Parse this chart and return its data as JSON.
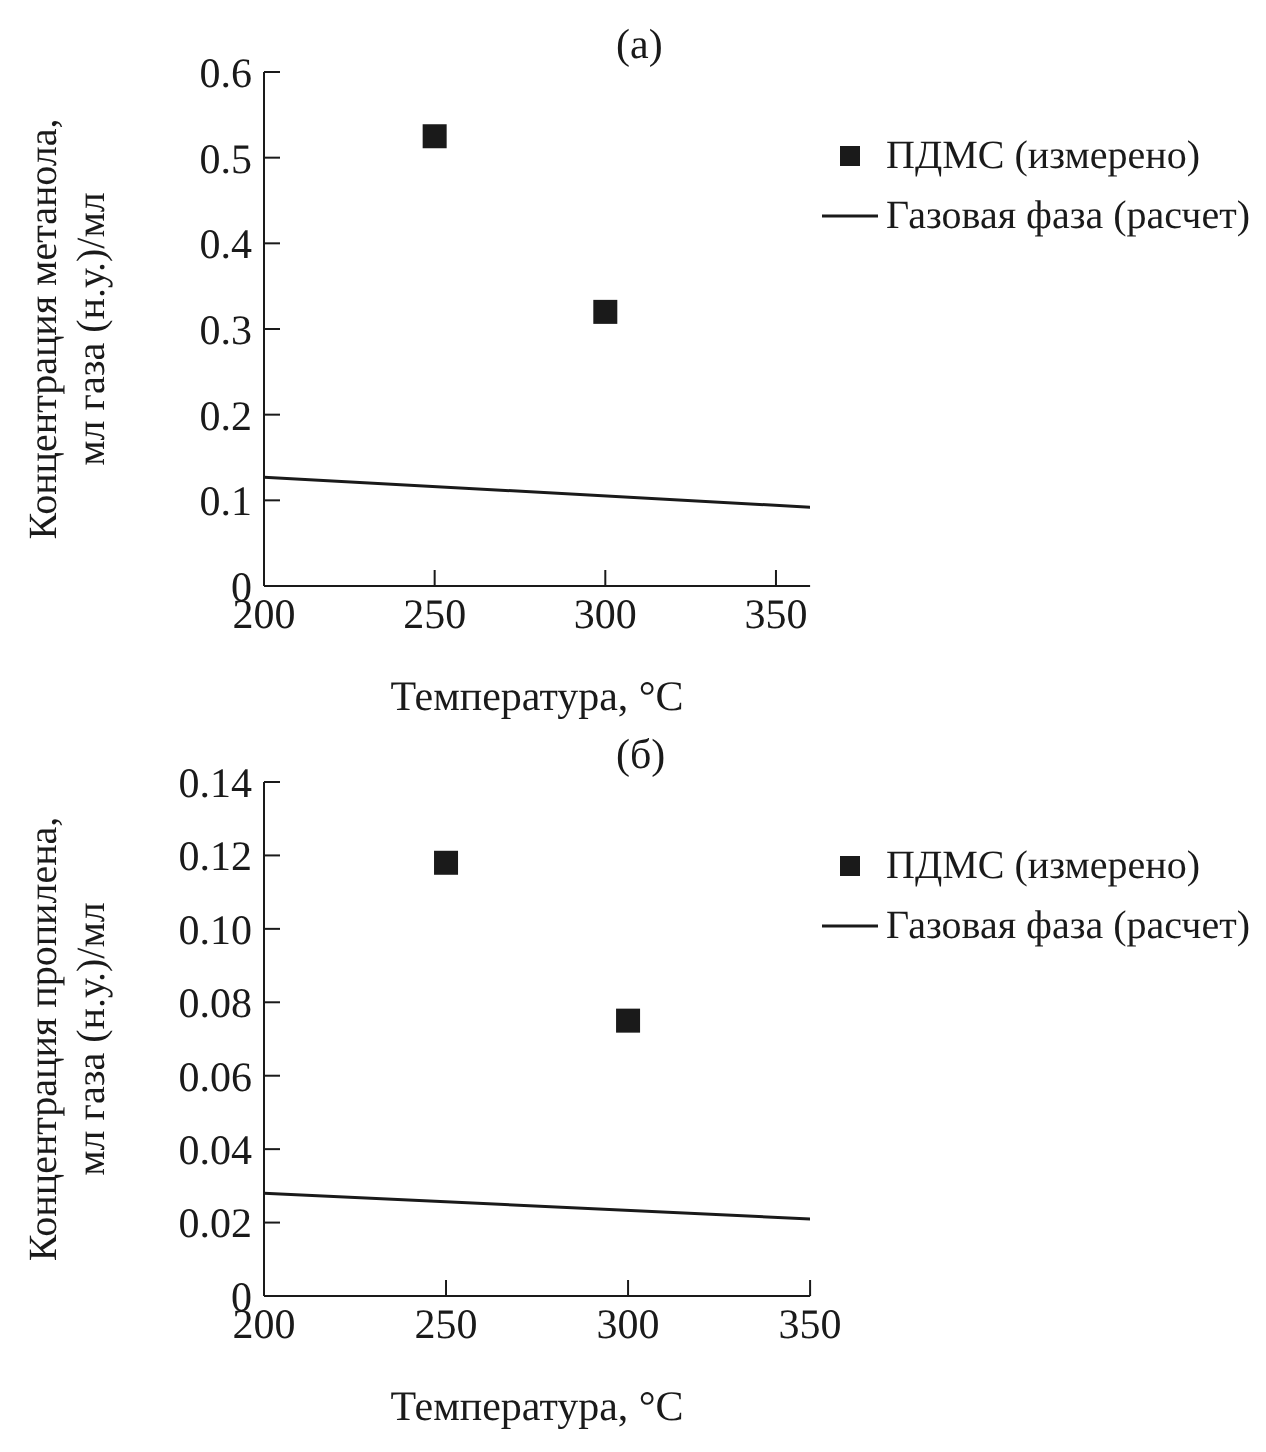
{
  "chart_data": [
    {
      "type": "scatter",
      "title": "(а)",
      "xlabel": "Температура, °C",
      "ylabel": "Концентрация метанола,\nмл газа (н.у.)/мл",
      "xlim": [
        200,
        360
      ],
      "xticks": [
        200,
        250,
        300,
        350
      ],
      "ylim": [
        0,
        0.6
      ],
      "yticks": [
        0,
        0.1,
        0.2,
        0.3,
        0.4,
        0.5,
        0.6
      ],
      "legend": "top right",
      "grid": false,
      "series": [
        {
          "name": "ПДМС (измерено)",
          "marker": "square",
          "color": "#1a1a1a",
          "x": [
            250,
            300
          ],
          "values": [
            0.525,
            0.32
          ]
        },
        {
          "name": "Газовая фаза (расчет)",
          "type": "line",
          "marker": "none",
          "line_style": "solid",
          "color": "#1a1a1a",
          "x": [
            200,
            360
          ],
          "values": [
            0.127,
            0.092
          ]
        }
      ]
    },
    {
      "type": "scatter",
      "title": "(б)",
      "xlabel": "Температура, °C",
      "ylabel": "Концентрация пропилена,\nмл газа (н.у.)/мл",
      "xlim": [
        200,
        350
      ],
      "xticks": [
        200,
        250,
        300,
        350
      ],
      "ylim": [
        0,
        0.14
      ],
      "yticks": [
        0,
        0.02,
        0.04,
        0.06,
        0.08,
        {
          "value": 0.1,
          "label": "0.10"
        },
        0.12,
        0.14
      ],
      "legend": "top right",
      "grid": false,
      "series": [
        {
          "name": "ПДМС (измерено)",
          "marker": "square",
          "color": "#1a1a1a",
          "x": [
            250,
            300
          ],
          "values": [
            0.118,
            0.075
          ]
        },
        {
          "name": "Газовая фаза (расчет)",
          "type": "line",
          "marker": "none",
          "line_style": "solid",
          "color": "#1a1a1a",
          "x": [
            200,
            350
          ],
          "values": [
            0.028,
            0.021
          ]
        }
      ]
    }
  ]
}
